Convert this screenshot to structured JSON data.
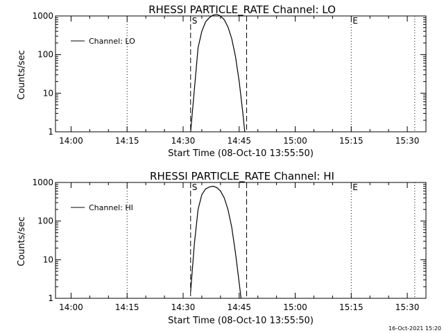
{
  "footer": {
    "timestamp": "16-Oct-2021 15:20"
  },
  "chart_data": [
    {
      "type": "line",
      "title": "RHESSI PARTICLE_RATE Channel: LO",
      "xlabel": "Start Time (08-Oct-10 13:55:50)",
      "ylabel": "Counts/sec",
      "legend": {
        "label": "Channel: LO",
        "placement": "top-left"
      },
      "y_scale": "log",
      "ylim": [
        1,
        1000
      ],
      "yticks": [
        "1",
        "10",
        "100",
        "1000"
      ],
      "xlim": [
        "13:55:50",
        "15:35:00"
      ],
      "xticks": [
        "14:00",
        "14:15",
        "14:30",
        "14:45",
        "15:00",
        "15:15",
        "15:30"
      ],
      "markers": [
        {
          "label": "S",
          "time": "14:32",
          "style": "dashed"
        },
        {
          "label": "",
          "time": "14:47",
          "style": "dashed"
        },
        {
          "label": "",
          "time": "14:15",
          "style": "dotted"
        },
        {
          "label": "E",
          "time": "15:15",
          "style": "dotted"
        },
        {
          "label": "",
          "time": "15:32",
          "style": "dotted"
        }
      ],
      "series": [
        {
          "name": "Channel: LO",
          "x": [
            "14:32",
            "14:33",
            "14:34",
            "14:35",
            "14:36",
            "14:37",
            "14:38",
            "14:39",
            "14:40",
            "14:41",
            "14:42",
            "14:43",
            "14:44",
            "14:45",
            "14:46",
            "14:46:30"
          ],
          "values": [
            1,
            12,
            150,
            400,
            700,
            900,
            1050,
            1100,
            1000,
            800,
            520,
            260,
            90,
            20,
            3,
            1
          ]
        }
      ]
    },
    {
      "type": "line",
      "title": "RHESSI PARTICLE_RATE Channel: HI",
      "xlabel": "Start Time (08-Oct-10 13:55:50)",
      "ylabel": "Counts/sec",
      "legend": {
        "label": "Channel: HI",
        "placement": "top-left"
      },
      "y_scale": "log",
      "ylim": [
        1,
        1000
      ],
      "yticks": [
        "1",
        "10",
        "100",
        "1000"
      ],
      "xlim": [
        "13:55:50",
        "15:35:00"
      ],
      "xticks": [
        "14:00",
        "14:15",
        "14:30",
        "14:45",
        "15:00",
        "15:15",
        "15:30"
      ],
      "markers": [
        {
          "label": "S",
          "time": "14:32",
          "style": "dashed"
        },
        {
          "label": "",
          "time": "14:47",
          "style": "dashed"
        },
        {
          "label": "",
          "time": "14:15",
          "style": "dotted"
        },
        {
          "label": "E",
          "time": "15:15",
          "style": "dotted"
        },
        {
          "label": "",
          "time": "15:32",
          "style": "dotted"
        }
      ],
      "series": [
        {
          "name": "Channel: HI",
          "x": [
            "14:32",
            "14:33",
            "14:34",
            "14:35",
            "14:36",
            "14:37",
            "14:38",
            "14:39",
            "14:40",
            "14:41",
            "14:42",
            "14:43",
            "14:44",
            "14:45",
            "14:45:30"
          ],
          "values": [
            1.5,
            25,
            200,
            480,
            680,
            760,
            800,
            740,
            600,
            400,
            200,
            70,
            15,
            2.5,
            1
          ]
        }
      ]
    }
  ]
}
